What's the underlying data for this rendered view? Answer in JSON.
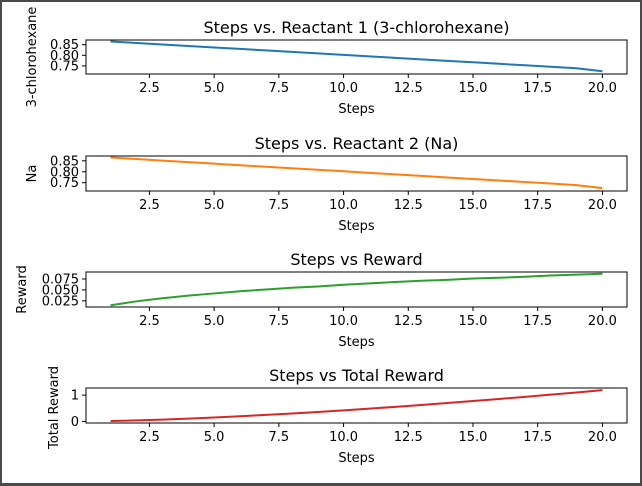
{
  "chart_data": [
    {
      "type": "line",
      "title": "Steps vs. Reactant 1 (3-chlorohexane)",
      "xlabel": "Steps",
      "ylabel": "3-chlorohexane",
      "xlim": [
        0.05,
        20.95
      ],
      "ylim": [
        0.712,
        0.872
      ],
      "xticks": [
        2.5,
        5.0,
        7.5,
        10.0,
        12.5,
        15.0,
        17.5,
        20.0
      ],
      "xtick_labels": [
        "2.5",
        "5.0",
        "7.5",
        "10.0",
        "12.5",
        "15.0",
        "17.5",
        "20.0"
      ],
      "yticks": [
        0.75,
        0.8,
        0.85
      ],
      "ytick_labels": [
        "0.75",
        "0.80",
        "0.85"
      ],
      "color": "#1f77b4",
      "x": [
        1,
        2,
        3,
        4,
        5,
        6,
        7,
        8,
        9,
        10,
        11,
        12,
        13,
        14,
        15,
        16,
        17,
        18,
        19,
        20
      ],
      "y": [
        0.865,
        0.858,
        0.851,
        0.844,
        0.837,
        0.83,
        0.823,
        0.816,
        0.809,
        0.802,
        0.795,
        0.788,
        0.781,
        0.774,
        0.767,
        0.76,
        0.753,
        0.746,
        0.739,
        0.725
      ]
    },
    {
      "type": "line",
      "title": "Steps vs. Reactant 2 (Na)",
      "xlabel": "Steps",
      "ylabel": "Na",
      "xlim": [
        0.05,
        20.95
      ],
      "ylim": [
        0.712,
        0.872
      ],
      "xticks": [
        2.5,
        5.0,
        7.5,
        10.0,
        12.5,
        15.0,
        17.5,
        20.0
      ],
      "xtick_labels": [
        "2.5",
        "5.0",
        "7.5",
        "10.0",
        "12.5",
        "15.0",
        "17.5",
        "20.0"
      ],
      "yticks": [
        0.75,
        0.8,
        0.85
      ],
      "ytick_labels": [
        "0.75",
        "0.80",
        "0.85"
      ],
      "color": "#ff7f0e",
      "x": [
        1,
        2,
        3,
        4,
        5,
        6,
        7,
        8,
        9,
        10,
        11,
        12,
        13,
        14,
        15,
        16,
        17,
        18,
        19,
        20
      ],
      "y": [
        0.865,
        0.858,
        0.851,
        0.844,
        0.837,
        0.83,
        0.823,
        0.816,
        0.809,
        0.802,
        0.795,
        0.788,
        0.781,
        0.774,
        0.767,
        0.76,
        0.753,
        0.746,
        0.739,
        0.725
      ]
    },
    {
      "type": "line",
      "title": "Steps vs Reward",
      "xlabel": "Steps",
      "ylabel": "Reward",
      "xlim": [
        0.05,
        20.95
      ],
      "ylim": [
        0.011,
        0.091
      ],
      "xticks": [
        2.5,
        5.0,
        7.5,
        10.0,
        12.5,
        15.0,
        17.5,
        20.0
      ],
      "xtick_labels": [
        "2.5",
        "5.0",
        "7.5",
        "10.0",
        "12.5",
        "15.0",
        "17.5",
        "20.0"
      ],
      "yticks": [
        0.025,
        0.05,
        0.075
      ],
      "ytick_labels": [
        "0.025",
        "0.050",
        "0.075"
      ],
      "color": "#2ca02c",
      "x": [
        1,
        2,
        3,
        4,
        5,
        6,
        7,
        8,
        9,
        10,
        11,
        12,
        13,
        14,
        15,
        16,
        17,
        18,
        19,
        20
      ],
      "y": [
        0.015,
        0.024,
        0.031,
        0.037,
        0.042,
        0.047,
        0.051,
        0.055,
        0.058,
        0.062,
        0.065,
        0.068,
        0.071,
        0.073,
        0.076,
        0.078,
        0.08,
        0.083,
        0.085,
        0.087
      ]
    },
    {
      "type": "line",
      "title": "Steps vs Total Reward",
      "xlabel": "Steps",
      "ylabel": "Total Reward",
      "xlim": [
        0.05,
        20.95
      ],
      "ylim": [
        -0.06,
        1.27
      ],
      "xticks": [
        2.5,
        5.0,
        7.5,
        10.0,
        12.5,
        15.0,
        17.5,
        20.0
      ],
      "xtick_labels": [
        "2.5",
        "5.0",
        "7.5",
        "10.0",
        "12.5",
        "15.0",
        "17.5",
        "20.0"
      ],
      "yticks": [
        0,
        1
      ],
      "ytick_labels": [
        "0",
        "1"
      ],
      "color": "#d62728",
      "x": [
        1,
        2,
        3,
        4,
        5,
        6,
        7,
        8,
        9,
        10,
        11,
        12,
        13,
        14,
        15,
        16,
        17,
        18,
        19,
        20
      ],
      "y": [
        0.015,
        0.039,
        0.07,
        0.107,
        0.149,
        0.196,
        0.247,
        0.302,
        0.36,
        0.422,
        0.487,
        0.555,
        0.626,
        0.699,
        0.775,
        0.853,
        0.933,
        1.016,
        1.101,
        1.188
      ]
    }
  ]
}
